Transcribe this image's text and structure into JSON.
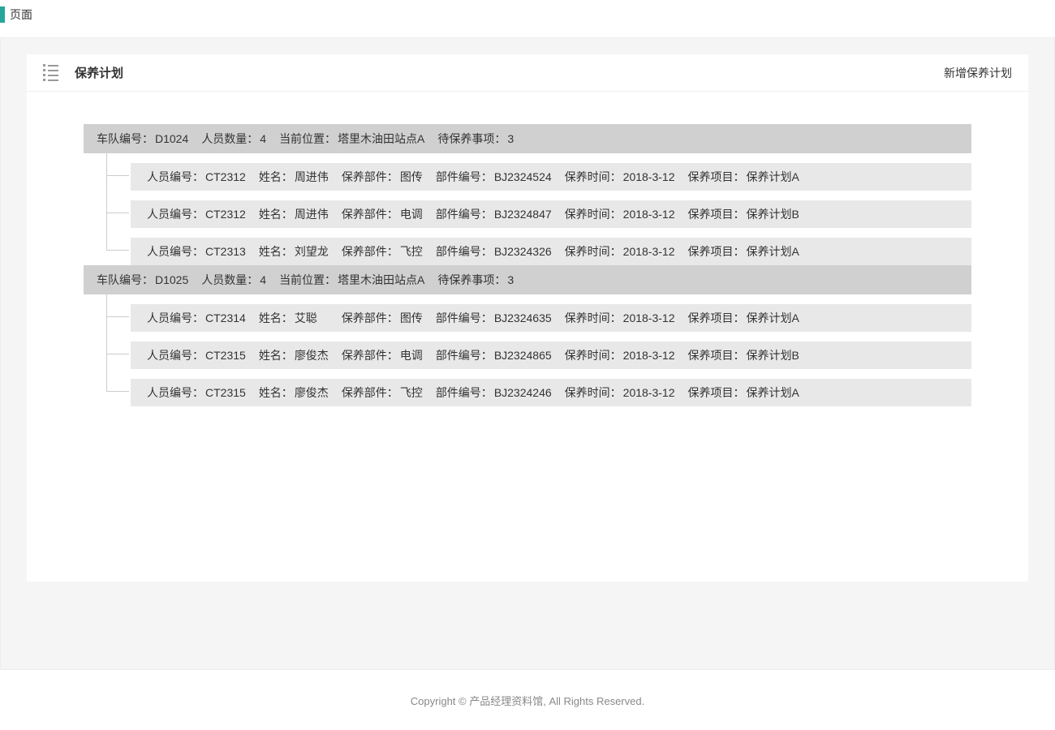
{
  "page": {
    "breadcrumb": "页面"
  },
  "panel": {
    "title": "保养计划",
    "add_button": "新增保养计划"
  },
  "labels": {
    "fleet_id": "车队编号：",
    "person_count": "人员数量：",
    "current_location": "当前位置：",
    "pending_items": "待保养事项：",
    "person_id": "人员编号：",
    "name": "姓名：",
    "part": "保养部件：",
    "part_id": "部件编号：",
    "time": "保养时间：",
    "project": "保养项目："
  },
  "fleets": [
    {
      "fleet_id": "D1024",
      "person_count": "4",
      "location": "塔里木油田站点A",
      "pending": "3",
      "tasks": [
        {
          "person_id": "CT2312",
          "name": "周进伟",
          "part": "图传",
          "part_id": "BJ2324524",
          "time": "2018-3-12",
          "project": "保养计划A"
        },
        {
          "person_id": "CT2312",
          "name": "周进伟",
          "part": "电调",
          "part_id": "BJ2324847",
          "time": "2018-3-12",
          "project": "保养计划B"
        },
        {
          "person_id": "CT2313",
          "name": "刘望龙",
          "part": "飞控",
          "part_id": "BJ2324326",
          "time": "2018-3-12",
          "project": "保养计划A"
        }
      ]
    },
    {
      "fleet_id": "D1025",
      "person_count": "4",
      "location": "塔里木油田站点A",
      "pending": "3",
      "tasks": [
        {
          "person_id": "CT2314",
          "name": "艾聪",
          "part": "图传",
          "part_id": "BJ2324635",
          "time": "2018-3-12",
          "project": "保养计划A"
        },
        {
          "person_id": "CT2315",
          "name": "廖俊杰",
          "part": "电调",
          "part_id": "BJ2324865",
          "time": "2018-3-12",
          "project": "保养计划B"
        },
        {
          "person_id": "CT2315",
          "name": "廖俊杰",
          "part": "飞控",
          "part_id": "BJ2324246",
          "time": "2018-3-12",
          "project": "保养计划A"
        }
      ]
    }
  ],
  "footer": {
    "copyright": "Copyright © 产品经理资料馆, All Rights Reserved."
  },
  "colors": {
    "accent": "#26a69a",
    "fleet_header_bg": "#d0d0d0",
    "task_row_bg": "#e8e8e8",
    "page_bg": "#f5f5f5",
    "panel_bg": "#ffffff",
    "text": "#333333",
    "muted": "#888888",
    "connector": "#cccccc"
  }
}
